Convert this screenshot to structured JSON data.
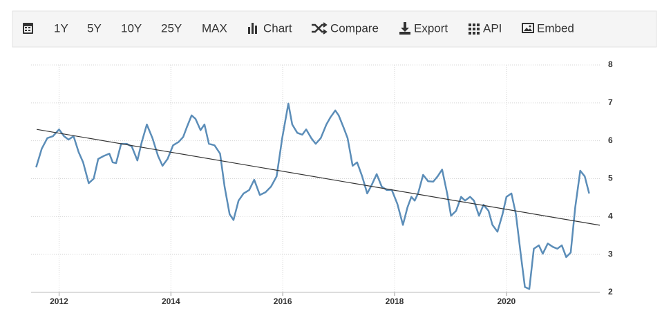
{
  "toolbar": [
    "1Y",
    "5Y",
    "10Y",
    "25Y",
    "MAX",
    "Chart",
    "Compare",
    "Export",
    "API",
    "Embed"
  ],
  "chart_data": {
    "type": "line",
    "x": [
      2011.59,
      2011.69,
      2011.79,
      2011.89,
      2012.0,
      2012.09,
      2012.17,
      2012.26,
      2012.35,
      2012.43,
      2012.53,
      2012.62,
      2012.7,
      2012.8,
      2012.9,
      2012.96,
      2013.02,
      2013.11,
      2013.21,
      2013.3,
      2013.4,
      2013.48,
      2013.57,
      2013.67,
      2013.77,
      2013.85,
      2013.94,
      2014.04,
      2014.14,
      2014.22,
      2014.28,
      2014.37,
      2014.44,
      2014.53,
      2014.6,
      2014.68,
      2014.78,
      2014.88,
      2014.96,
      2015.05,
      2015.12,
      2015.21,
      2015.3,
      2015.4,
      2015.49,
      2015.59,
      2015.69,
      2015.79,
      2015.89,
      2015.99,
      2016.1,
      2016.17,
      2016.26,
      2016.35,
      2016.42,
      2016.51,
      2016.59,
      2016.68,
      2016.78,
      2016.85,
      2016.94,
      2017.0,
      2017.09,
      2017.16,
      2017.25,
      2017.33,
      2017.42,
      2017.51,
      2017.59,
      2017.68,
      2017.77,
      2017.86,
      2017.95,
      2018.05,
      2018.15,
      2018.23,
      2018.3,
      2018.36,
      2018.42,
      2018.51,
      2018.6,
      2018.69,
      2018.77,
      2018.85,
      2018.94,
      2019.01,
      2019.1,
      2019.19,
      2019.26,
      2019.35,
      2019.42,
      2019.51,
      2019.59,
      2019.68,
      2019.75,
      2019.84,
      2019.93,
      2020.0,
      2020.09,
      2020.17,
      2020.26,
      2020.33,
      2020.41,
      2020.49,
      2020.58,
      2020.65,
      2020.74,
      2020.83,
      2020.91,
      2020.99,
      2021.07,
      2021.15,
      2021.23,
      2021.32,
      2021.4,
      2021.48
    ],
    "series": [
      {
        "color": "#5b8db8",
        "values": [
          5.3,
          5.79,
          6.07,
          6.12,
          6.3,
          6.12,
          6.03,
          6.12,
          5.7,
          5.43,
          4.88,
          5.0,
          5.52,
          5.6,
          5.66,
          5.43,
          5.41,
          5.92,
          5.92,
          5.85,
          5.48,
          5.97,
          6.43,
          6.07,
          5.6,
          5.34,
          5.52,
          5.88,
          5.97,
          6.1,
          6.34,
          6.67,
          6.58,
          6.28,
          6.43,
          5.92,
          5.88,
          5.66,
          4.79,
          4.06,
          3.91,
          4.42,
          4.61,
          4.7,
          4.97,
          4.57,
          4.64,
          4.79,
          5.06,
          6.07,
          6.98,
          6.43,
          6.21,
          6.16,
          6.3,
          6.07,
          5.92,
          6.07,
          6.43,
          6.61,
          6.8,
          6.67,
          6.34,
          6.07,
          5.34,
          5.43,
          5.06,
          4.61,
          4.83,
          5.12,
          4.79,
          4.7,
          4.7,
          4.33,
          3.78,
          4.24,
          4.52,
          4.42,
          4.61,
          5.1,
          4.93,
          4.92,
          5.06,
          5.24,
          4.61,
          4.02,
          4.15,
          4.52,
          4.42,
          4.52,
          4.42,
          4.02,
          4.31,
          4.15,
          3.78,
          3.6,
          4.06,
          4.52,
          4.61,
          4.06,
          2.96,
          2.14,
          2.09,
          3.15,
          3.24,
          3.02,
          3.29,
          3.2,
          3.15,
          3.24,
          2.93,
          3.05,
          4.24,
          5.21,
          5.06,
          4.61
        ]
      }
    ],
    "trend": {
      "x": [
        2011.6,
        2021.67
      ],
      "values": [
        6.3,
        3.77
      ],
      "color": "#333333"
    },
    "xlim": [
      2011.5,
      2021.67
    ],
    "ylim": [
      2,
      8
    ],
    "xticks": [
      2012,
      2014,
      2016,
      2018,
      2020
    ],
    "yticks": [
      2,
      3,
      4,
      5,
      6,
      7,
      8
    ],
    "grid": true,
    "yaxis_position": "right"
  }
}
